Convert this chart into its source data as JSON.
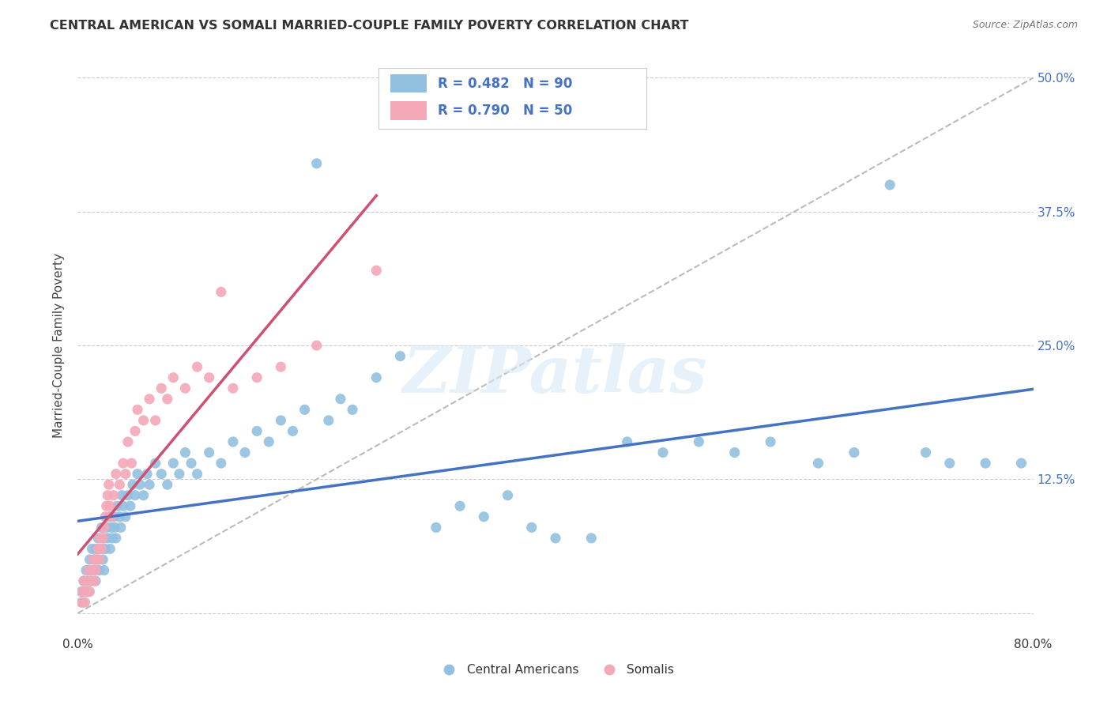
{
  "title": "CENTRAL AMERICAN VS SOMALI MARRIED-COUPLE FAMILY POVERTY CORRELATION CHART",
  "source": "Source: ZipAtlas.com",
  "ylabel": "Married-Couple Family Poverty",
  "xlim": [
    0,
    0.8
  ],
  "ylim": [
    -0.02,
    0.52
  ],
  "x_ticks": [
    0.0,
    0.1,
    0.2,
    0.3,
    0.4,
    0.5,
    0.6,
    0.7,
    0.8
  ],
  "x_tick_labels": [
    "0.0%",
    "",
    "",
    "",
    "",
    "",
    "",
    "",
    "80.0%"
  ],
  "y_ticks": [
    0.0,
    0.125,
    0.25,
    0.375,
    0.5
  ],
  "y_tick_labels": [
    "",
    "12.5%",
    "25.0%",
    "37.5%",
    "50.0%"
  ],
  "watermark": "ZIPatlas",
  "legend_label1": "Central Americans",
  "legend_label2": "Somalis",
  "color_blue": "#92C0E0",
  "color_pink": "#F4A8B8",
  "color_blue_text": "#4472C4",
  "line_blue": "#4472C4",
  "line_pink": "#D05070",
  "line_dash": "#BBBBBB",
  "ca_x": [
    0.003,
    0.004,
    0.005,
    0.006,
    0.007,
    0.008,
    0.009,
    0.01,
    0.01,
    0.011,
    0.012,
    0.013,
    0.014,
    0.015,
    0.015,
    0.016,
    0.017,
    0.018,
    0.019,
    0.02,
    0.021,
    0.022,
    0.022,
    0.023,
    0.024,
    0.025,
    0.026,
    0.027,
    0.028,
    0.029,
    0.03,
    0.031,
    0.032,
    0.033,
    0.035,
    0.036,
    0.037,
    0.038,
    0.04,
    0.042,
    0.044,
    0.046,
    0.048,
    0.05,
    0.052,
    0.055,
    0.058,
    0.06,
    0.065,
    0.07,
    0.075,
    0.08,
    0.085,
    0.09,
    0.095,
    0.1,
    0.11,
    0.12,
    0.13,
    0.14,
    0.15,
    0.16,
    0.17,
    0.18,
    0.19,
    0.2,
    0.21,
    0.22,
    0.23,
    0.25,
    0.27,
    0.3,
    0.32,
    0.34,
    0.36,
    0.38,
    0.4,
    0.43,
    0.46,
    0.49,
    0.52,
    0.55,
    0.58,
    0.62,
    0.65,
    0.68,
    0.71,
    0.73,
    0.76,
    0.79
  ],
  "ca_y": [
    0.02,
    0.01,
    0.03,
    0.02,
    0.04,
    0.03,
    0.02,
    0.05,
    0.04,
    0.03,
    0.06,
    0.04,
    0.05,
    0.06,
    0.03,
    0.05,
    0.07,
    0.04,
    0.06,
    0.08,
    0.05,
    0.07,
    0.04,
    0.06,
    0.08,
    0.07,
    0.09,
    0.06,
    0.08,
    0.07,
    0.09,
    0.08,
    0.07,
    0.1,
    0.09,
    0.08,
    0.11,
    0.1,
    0.09,
    0.11,
    0.1,
    0.12,
    0.11,
    0.13,
    0.12,
    0.11,
    0.13,
    0.12,
    0.14,
    0.13,
    0.12,
    0.14,
    0.13,
    0.15,
    0.14,
    0.13,
    0.15,
    0.14,
    0.16,
    0.15,
    0.17,
    0.16,
    0.18,
    0.17,
    0.19,
    0.42,
    0.18,
    0.2,
    0.19,
    0.22,
    0.24,
    0.08,
    0.1,
    0.09,
    0.11,
    0.08,
    0.07,
    0.07,
    0.16,
    0.15,
    0.16,
    0.15,
    0.16,
    0.14,
    0.15,
    0.4,
    0.15,
    0.14,
    0.14,
    0.14
  ],
  "so_x": [
    0.003,
    0.004,
    0.005,
    0.006,
    0.007,
    0.008,
    0.009,
    0.01,
    0.011,
    0.012,
    0.013,
    0.014,
    0.015,
    0.016,
    0.017,
    0.018,
    0.019,
    0.02,
    0.021,
    0.022,
    0.023,
    0.024,
    0.025,
    0.026,
    0.027,
    0.028,
    0.03,
    0.032,
    0.035,
    0.038,
    0.04,
    0.042,
    0.045,
    0.048,
    0.05,
    0.055,
    0.06,
    0.065,
    0.07,
    0.075,
    0.08,
    0.09,
    0.1,
    0.11,
    0.12,
    0.13,
    0.15,
    0.17,
    0.2,
    0.25
  ],
  "so_y": [
    0.01,
    0.02,
    0.03,
    0.01,
    0.02,
    0.03,
    0.04,
    0.02,
    0.03,
    0.04,
    0.05,
    0.03,
    0.04,
    0.05,
    0.06,
    0.05,
    0.07,
    0.06,
    0.07,
    0.08,
    0.09,
    0.1,
    0.11,
    0.12,
    0.1,
    0.09,
    0.11,
    0.13,
    0.12,
    0.14,
    0.13,
    0.16,
    0.14,
    0.17,
    0.19,
    0.18,
    0.2,
    0.18,
    0.21,
    0.2,
    0.22,
    0.21,
    0.23,
    0.22,
    0.3,
    0.21,
    0.22,
    0.23,
    0.25,
    0.32
  ]
}
